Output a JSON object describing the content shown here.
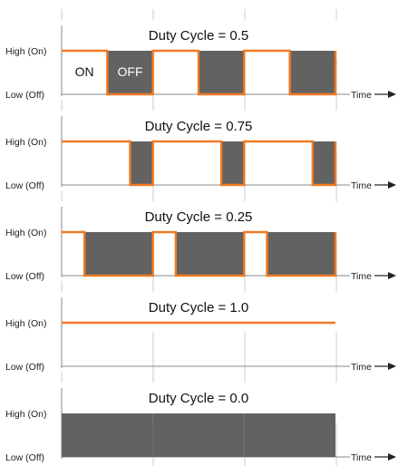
{
  "chart_data": {
    "type": "line",
    "y_tick_labels": [
      "High (On)",
      "Low (Off)"
    ],
    "x_axis_label": "Time",
    "vertical_gridlines": true,
    "colors": {
      "signal": "#f07a22",
      "off_fill": "#626262",
      "axis": "#888888",
      "grid": "#cccccc"
    },
    "panels": [
      {
        "title": "Duty Cycle = 0.5",
        "duty_cycle": 0.5,
        "periods": 3,
        "period_labels": {
          "on": "ON",
          "off": "OFF"
        }
      },
      {
        "title": "Duty Cycle = 0.75",
        "duty_cycle": 0.75,
        "periods": 3
      },
      {
        "title": "Duty Cycle = 0.25",
        "duty_cycle": 0.25,
        "periods": 3
      },
      {
        "title": "Duty Cycle = 1.0",
        "duty_cycle": 1.0,
        "periods": 3
      },
      {
        "title": "Duty Cycle = 0.0",
        "duty_cycle": 0.0,
        "periods": 3
      }
    ]
  }
}
